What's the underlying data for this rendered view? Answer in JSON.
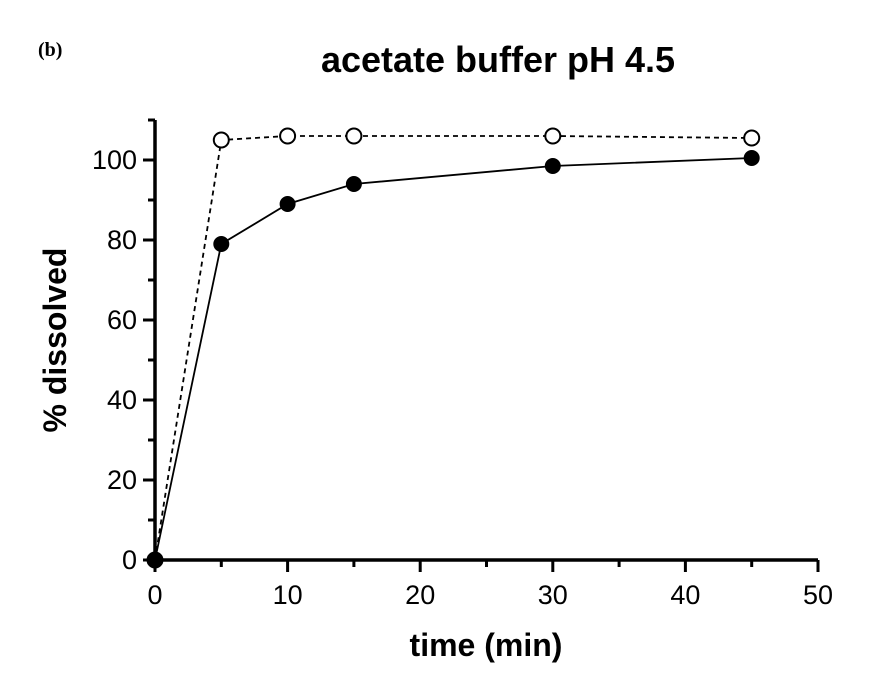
{
  "chart_data": {
    "type": "line",
    "panel_label": "(b)",
    "title": "acetate buffer pH 4.5",
    "xlabel": "time (min)",
    "ylabel": "% dissolved",
    "xlim": [
      0,
      50
    ],
    "ylim": [
      0,
      110
    ],
    "x_ticks": [
      0,
      10,
      20,
      30,
      40,
      50
    ],
    "y_ticks": [
      0,
      20,
      40,
      60,
      80,
      100
    ],
    "grid": false,
    "legend": "none",
    "series": [
      {
        "marker": "filled-circle",
        "line_style": "solid",
        "color": "#000000",
        "x": [
          0,
          5,
          10,
          15,
          30,
          45
        ],
        "values": [
          0,
          79,
          89,
          94,
          98.5,
          100.5
        ]
      },
      {
        "marker": "open-circle",
        "line_style": "dashed",
        "color": "#000000",
        "x": [
          0,
          5,
          10,
          15,
          30,
          45
        ],
        "values": [
          0,
          105,
          106,
          106,
          106,
          105.5
        ]
      }
    ]
  }
}
